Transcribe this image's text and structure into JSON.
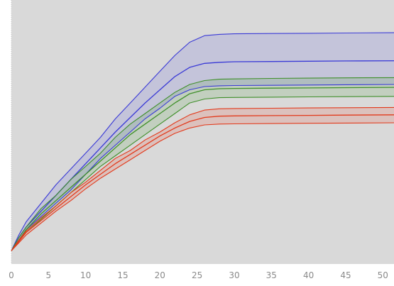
{
  "chart_data": {
    "type": "line",
    "title": "",
    "xlabel": "",
    "ylabel": "",
    "xlim": [
      0,
      51.5
    ],
    "ylim": [
      0,
      1
    ],
    "xticks": [
      0,
      5,
      10,
      15,
      20,
      25,
      30,
      35,
      40,
      45,
      50
    ],
    "show_y_ticks": false,
    "grid": false,
    "background": "#d9d9d9",
    "x": [
      0,
      1,
      2,
      4,
      6,
      8,
      10,
      12,
      14,
      16,
      18,
      20,
      22,
      24,
      26,
      28,
      30,
      35,
      40,
      45,
      51.5
    ],
    "series": [
      {
        "color": "#3a3ad6",
        "fill": "rgba(100,100,220,0.18)",
        "mean": [
          0.05,
          0.1,
          0.14,
          0.2,
          0.26,
          0.32,
          0.38,
          0.44,
          0.5,
          0.555,
          0.61,
          0.66,
          0.71,
          0.745,
          0.76,
          0.764,
          0.766,
          0.767,
          0.768,
          0.769,
          0.77
        ],
        "upper": [
          0.05,
          0.11,
          0.16,
          0.23,
          0.3,
          0.36,
          0.42,
          0.48,
          0.55,
          0.61,
          0.67,
          0.73,
          0.79,
          0.84,
          0.865,
          0.87,
          0.872,
          0.873,
          0.874,
          0.875,
          0.876
        ],
        "lower": [
          0.05,
          0.09,
          0.13,
          0.18,
          0.23,
          0.28,
          0.34,
          0.4,
          0.45,
          0.5,
          0.55,
          0.59,
          0.635,
          0.66,
          0.672,
          0.675,
          0.676,
          0.677,
          0.678,
          0.679,
          0.68
        ]
      },
      {
        "color": "#3f8f2a",
        "fill": "rgba(90,160,70,0.18)",
        "mean": [
          0.05,
          0.09,
          0.13,
          0.19,
          0.24,
          0.29,
          0.34,
          0.39,
          0.44,
          0.49,
          0.53,
          0.57,
          0.61,
          0.645,
          0.66,
          0.664,
          0.665,
          0.666,
          0.667,
          0.668,
          0.669
        ],
        "upper": [
          0.05,
          0.1,
          0.14,
          0.21,
          0.26,
          0.32,
          0.37,
          0.42,
          0.48,
          0.53,
          0.57,
          0.61,
          0.65,
          0.68,
          0.695,
          0.7,
          0.701,
          0.703,
          0.704,
          0.705,
          0.706
        ],
        "lower": [
          0.05,
          0.085,
          0.12,
          0.17,
          0.22,
          0.27,
          0.32,
          0.37,
          0.41,
          0.45,
          0.49,
          0.53,
          0.57,
          0.61,
          0.625,
          0.63,
          0.631,
          0.632,
          0.633,
          0.634,
          0.635
        ]
      },
      {
        "color": "#e23a1c",
        "fill": "rgba(230,110,90,0.22)",
        "mean": [
          0.05,
          0.085,
          0.12,
          0.165,
          0.21,
          0.255,
          0.3,
          0.34,
          0.38,
          0.415,
          0.45,
          0.485,
          0.515,
          0.54,
          0.555,
          0.56,
          0.561,
          0.562,
          0.563,
          0.564,
          0.565
        ],
        "upper": [
          0.05,
          0.09,
          0.125,
          0.175,
          0.22,
          0.27,
          0.31,
          0.355,
          0.4,
          0.43,
          0.47,
          0.5,
          0.535,
          0.565,
          0.583,
          0.588,
          0.589,
          0.59,
          0.591,
          0.592,
          0.593
        ],
        "lower": [
          0.05,
          0.08,
          0.11,
          0.155,
          0.2,
          0.24,
          0.285,
          0.325,
          0.36,
          0.395,
          0.43,
          0.465,
          0.495,
          0.515,
          0.527,
          0.53,
          0.531,
          0.532,
          0.533,
          0.534,
          0.535
        ]
      }
    ]
  }
}
